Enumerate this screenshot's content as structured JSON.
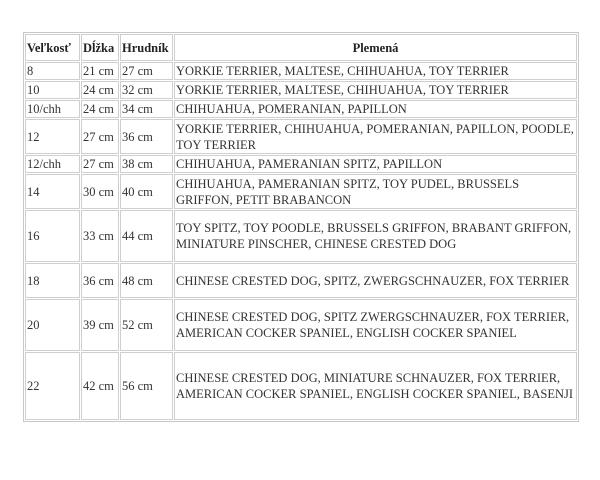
{
  "headers": {
    "size": "Veľkosť",
    "length": "Dĺžka",
    "chest": "Hrudník",
    "breeds": "Plemená"
  },
  "rows": [
    {
      "size": "8",
      "length": "21 cm",
      "chest": "27 cm",
      "breeds": "YORKIE TERRIER, MALTESE, CHIHUAHUA, TOY TERRIER"
    },
    {
      "size": "10",
      "length": "24 cm",
      "chest": "32 cm",
      "breeds": "YORKIE TERRIER, MALTESE, CHIHUAHUA, TOY TERRIER"
    },
    {
      "size": "10/chh",
      "length": "24 cm",
      "chest": "34 cm",
      "breeds": "CHIHUAHUA, POMERANIAN, PAPILLON"
    },
    {
      "size": "12",
      "length": "27 cm",
      "chest": "36 cm",
      "breeds": "YORKIE TERRIER, CHIHUAHUA, POMERANIAN, PAPILLON, POODLE, TOY TERRIER"
    },
    {
      "size": "12/chh",
      "length": "27 cm",
      "chest": "38 cm",
      "breeds": "CHIHUAHUA, PAMERANIAN SPITZ, PAPILLON"
    },
    {
      "size": "14",
      "length": "30 cm",
      "chest": "40 cm",
      "breeds": "CHIHUAHUA, PAMERANIAN SPITZ, TOY PUDEL, BRUSSELS GRIFFON, PETIT BRABANCON"
    },
    {
      "size": "16",
      "length": "33 cm",
      "chest": "44 cm",
      "breeds": "TOY SPITZ, TOY POODLE, BRUSSELS GRIFFON, BRABANT GRIFFON, MINIATURE PINSCHER, CHINESE CRESTED DOG"
    },
    {
      "size": "18",
      "length": "36 cm",
      "chest": "48 cm",
      "breeds": "CHINESE CRESTED DOG, SPITZ, ZWERGSCHNAUZER, FOX TERRIER"
    },
    {
      "size": "20",
      "length": "39 cm",
      "chest": "52 cm",
      "breeds": "CHINESE CRESTED DOG, SPITZ ZWERGSCHNAUZER, FOX TERRIER, AMERICAN COCKER SPANIEL, ENGLISH COCKER SPANIEL"
    },
    {
      "size": "22",
      "length": "42 cm",
      "chest": "56 cm",
      "breeds": "CHINESE CRESTED DOG, MINIATURE SCHNAUZER, FOX TERRIER, AMERICAN COCKER SPANIEL, ENGLISH COCKER SPANIEL, BASENJI"
    }
  ]
}
